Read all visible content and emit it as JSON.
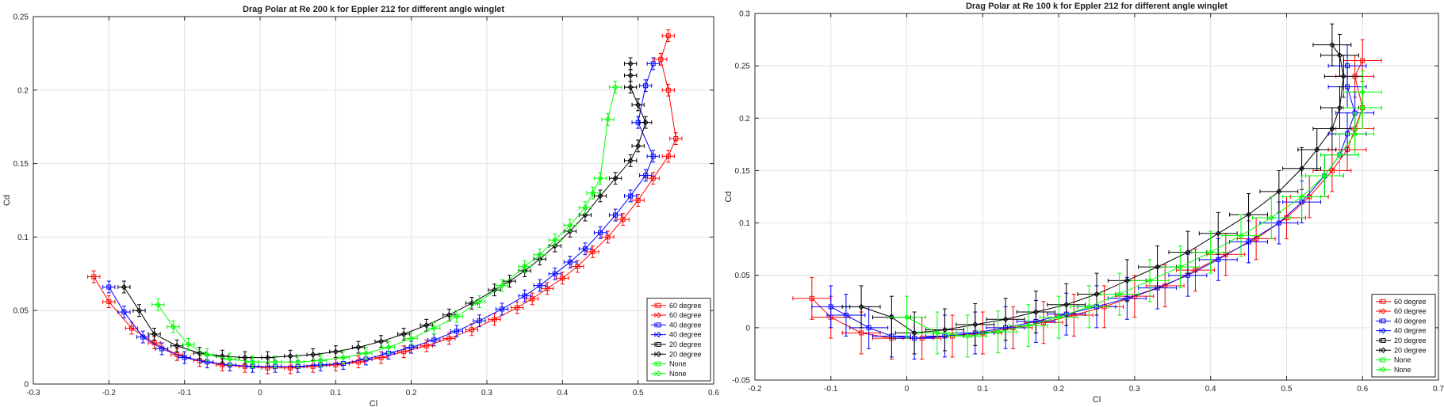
{
  "chart_data": [
    {
      "type": "line",
      "title": "Drag Polar at Re 200 k for Eppler 212 for different angle winglet",
      "xlabel": "Cl",
      "ylabel": "Cd",
      "xlim": [
        -0.3,
        0.6
      ],
      "ylim": [
        0,
        0.25
      ],
      "xticks": [
        "-0.3",
        "-0.2",
        "-0.1",
        "0",
        "0.1",
        "0.2",
        "0.3",
        "0.4",
        "0.5",
        "0.6"
      ],
      "yticks": [
        "0",
        "0.05",
        "0.1",
        "0.15",
        "0.2",
        "0.25"
      ],
      "grid": true,
      "legend_location": "bottom-right",
      "legend": [
        "60 degree",
        "60 degree",
        "40 degree",
        "40 degree",
        "20 degree",
        "20 degree",
        "None",
        "None"
      ],
      "series": [
        {
          "name": "60 degree",
          "color": "#ff0000",
          "marker": "square",
          "x": [
            -0.22,
            -0.2,
            -0.17,
            -0.14,
            -0.11,
            -0.08,
            -0.05,
            -0.02,
            0.01,
            0.04,
            0.07,
            0.1,
            0.13,
            0.16,
            0.19,
            0.22,
            0.25,
            0.28,
            0.31,
            0.34,
            0.36,
            0.38,
            0.4,
            0.42,
            0.44,
            0.46,
            0.48,
            0.5,
            0.52,
            0.54,
            0.55,
            0.54,
            0.53,
            0.54
          ],
          "y": [
            0.073,
            0.056,
            0.038,
            0.028,
            0.02,
            0.016,
            0.013,
            0.012,
            0.011,
            0.011,
            0.012,
            0.013,
            0.015,
            0.018,
            0.022,
            0.026,
            0.031,
            0.037,
            0.044,
            0.052,
            0.058,
            0.065,
            0.072,
            0.08,
            0.09,
            0.1,
            0.112,
            0.125,
            0.14,
            0.155,
            0.167,
            0.2,
            0.221,
            0.237
          ],
          "xerr": 0.008,
          "yerr": 0.004
        },
        {
          "name": "40 degree",
          "color": "#0000ff",
          "marker": "square",
          "x": [
            -0.2,
            -0.18,
            -0.155,
            -0.13,
            -0.1,
            -0.07,
            -0.04,
            -0.01,
            0.02,
            0.05,
            0.08,
            0.11,
            0.14,
            0.17,
            0.2,
            0.23,
            0.26,
            0.29,
            0.32,
            0.35,
            0.37,
            0.39,
            0.41,
            0.43,
            0.45,
            0.47,
            0.49,
            0.51,
            0.52,
            0.5,
            0.51,
            0.52
          ],
          "y": [
            0.066,
            0.049,
            0.032,
            0.024,
            0.018,
            0.015,
            0.013,
            0.012,
            0.012,
            0.012,
            0.013,
            0.014,
            0.017,
            0.021,
            0.025,
            0.03,
            0.036,
            0.043,
            0.051,
            0.06,
            0.067,
            0.075,
            0.083,
            0.092,
            0.103,
            0.115,
            0.128,
            0.142,
            0.155,
            0.178,
            0.203,
            0.218
          ],
          "xerr": 0.008,
          "yerr": 0.004
        },
        {
          "name": "20 degree",
          "color": "#000000",
          "marker": "diamond",
          "x": [
            -0.18,
            -0.16,
            -0.14,
            -0.11,
            -0.08,
            -0.05,
            -0.02,
            0.01,
            0.04,
            0.07,
            0.1,
            0.13,
            0.16,
            0.19,
            0.22,
            0.25,
            0.28,
            0.31,
            0.33,
            0.35,
            0.37,
            0.39,
            0.41,
            0.43,
            0.45,
            0.47,
            0.49,
            0.5,
            0.51,
            0.5,
            0.49,
            0.49,
            0.49
          ],
          "y": [
            0.066,
            0.05,
            0.034,
            0.026,
            0.021,
            0.019,
            0.018,
            0.018,
            0.019,
            0.02,
            0.022,
            0.025,
            0.029,
            0.034,
            0.04,
            0.047,
            0.055,
            0.064,
            0.07,
            0.077,
            0.085,
            0.094,
            0.104,
            0.115,
            0.128,
            0.14,
            0.152,
            0.162,
            0.178,
            0.19,
            0.202,
            0.21,
            0.218
          ],
          "xerr": 0.008,
          "yerr": 0.004
        },
        {
          "name": "None",
          "color": "#00ff00",
          "marker": "diamond",
          "x": [
            -0.135,
            -0.115,
            -0.095,
            -0.07,
            -0.04,
            -0.01,
            0.02,
            0.05,
            0.08,
            0.11,
            0.14,
            0.17,
            0.2,
            0.23,
            0.26,
            0.29,
            0.32,
            0.35,
            0.37,
            0.39,
            0.41,
            0.43,
            0.44,
            0.45,
            0.46,
            0.47
          ],
          "y": [
            0.054,
            0.039,
            0.027,
            0.02,
            0.017,
            0.015,
            0.015,
            0.015,
            0.016,
            0.018,
            0.021,
            0.025,
            0.031,
            0.038,
            0.046,
            0.056,
            0.067,
            0.08,
            0.088,
            0.098,
            0.108,
            0.12,
            0.13,
            0.14,
            0.18,
            0.202
          ],
          "xerr": 0.008,
          "yerr": 0.004
        }
      ]
    },
    {
      "type": "line",
      "title": "Drag Polar at Re 100 k for Eppler 212 for different angle winglet",
      "xlabel": "Cl",
      "ylabel": "Cd",
      "xlim": [
        -0.2,
        0.7
      ],
      "ylim": [
        -0.05,
        0.3
      ],
      "xticks": [
        "-0.2",
        "-0.1",
        "0",
        "0.1",
        "0.2",
        "0.3",
        "0.4",
        "0.5",
        "0.6",
        "0.7"
      ],
      "yticks": [
        "-0.05",
        "0",
        "0.05",
        "0.1",
        "0.15",
        "0.2",
        "0.25",
        "0.3"
      ],
      "grid": true,
      "legend_location": "bottom-right",
      "legend": [
        "60 degree",
        "60 degree",
        "40 degree",
        "40 degree",
        "20 degree",
        "20 degree",
        "None",
        "None"
      ],
      "series": [
        {
          "name": "60 degree",
          "color": "#ff0000",
          "marker": "square",
          "x": [
            -0.125,
            -0.1,
            -0.06,
            -0.02,
            0.02,
            0.06,
            0.1,
            0.14,
            0.18,
            0.22,
            0.26,
            0.3,
            0.34,
            0.38,
            0.42,
            0.46,
            0.5,
            0.53,
            0.56,
            0.58,
            0.59,
            0.6,
            0.59,
            0.6
          ],
          "y": [
            0.028,
            0.01,
            -0.005,
            -0.01,
            -0.01,
            -0.008,
            -0.005,
            0,
            0.005,
            0.012,
            0.02,
            0.03,
            0.04,
            0.055,
            0.07,
            0.085,
            0.105,
            0.125,
            0.15,
            0.17,
            0.19,
            0.21,
            0.24,
            0.255
          ],
          "xerr": 0.025,
          "yerr": 0.02
        },
        {
          "name": "40 degree",
          "color": "#0000ff",
          "marker": "square",
          "x": [
            -0.1,
            -0.08,
            -0.05,
            -0.02,
            0.01,
            0.05,
            0.09,
            0.13,
            0.17,
            0.21,
            0.25,
            0.29,
            0.33,
            0.37,
            0.41,
            0.45,
            0.49,
            0.52,
            0.55,
            0.57,
            0.58,
            0.59,
            0.58,
            0.58
          ],
          "y": [
            0.02,
            0.012,
            0,
            -0.008,
            -0.01,
            -0.008,
            -0.005,
            0,
            0.006,
            0.013,
            0.02,
            0.028,
            0.038,
            0.05,
            0.065,
            0.082,
            0.1,
            0.12,
            0.145,
            0.165,
            0.185,
            0.205,
            0.23,
            0.25
          ],
          "xerr": 0.025,
          "yerr": 0.02
        },
        {
          "name": "20 degree",
          "color": "#000000",
          "marker": "diamond",
          "x": [
            -0.06,
            -0.02,
            0.01,
            0.05,
            0.09,
            0.13,
            0.17,
            0.21,
            0.25,
            0.29,
            0.33,
            0.37,
            0.41,
            0.45,
            0.49,
            0.52,
            0.54,
            0.56,
            0.57,
            0.575,
            0.57,
            0.56
          ],
          "y": [
            0.02,
            0.01,
            -0.005,
            -0.002,
            0.003,
            0.008,
            0.015,
            0.022,
            0.032,
            0.045,
            0.058,
            0.072,
            0.09,
            0.108,
            0.13,
            0.152,
            0.17,
            0.19,
            0.21,
            0.24,
            0.26,
            0.27
          ],
          "xerr": 0.025,
          "yerr": 0.02
        },
        {
          "name": "None",
          "color": "#00ff00",
          "marker": "diamond",
          "x": [
            0.0,
            0.04,
            0.08,
            0.12,
            0.16,
            0.2,
            0.24,
            0.28,
            0.32,
            0.36,
            0.4,
            0.44,
            0.48,
            0.52,
            0.55,
            0.57,
            0.59,
            0.6,
            0.6
          ],
          "y": [
            0.01,
            -0.005,
            -0.008,
            -0.004,
            0.002,
            0.01,
            0.02,
            0.032,
            0.045,
            0.058,
            0.072,
            0.088,
            0.105,
            0.125,
            0.145,
            0.165,
            0.185,
            0.21,
            0.225
          ],
          "xerr": 0.025,
          "yerr": 0.02
        }
      ]
    }
  ]
}
